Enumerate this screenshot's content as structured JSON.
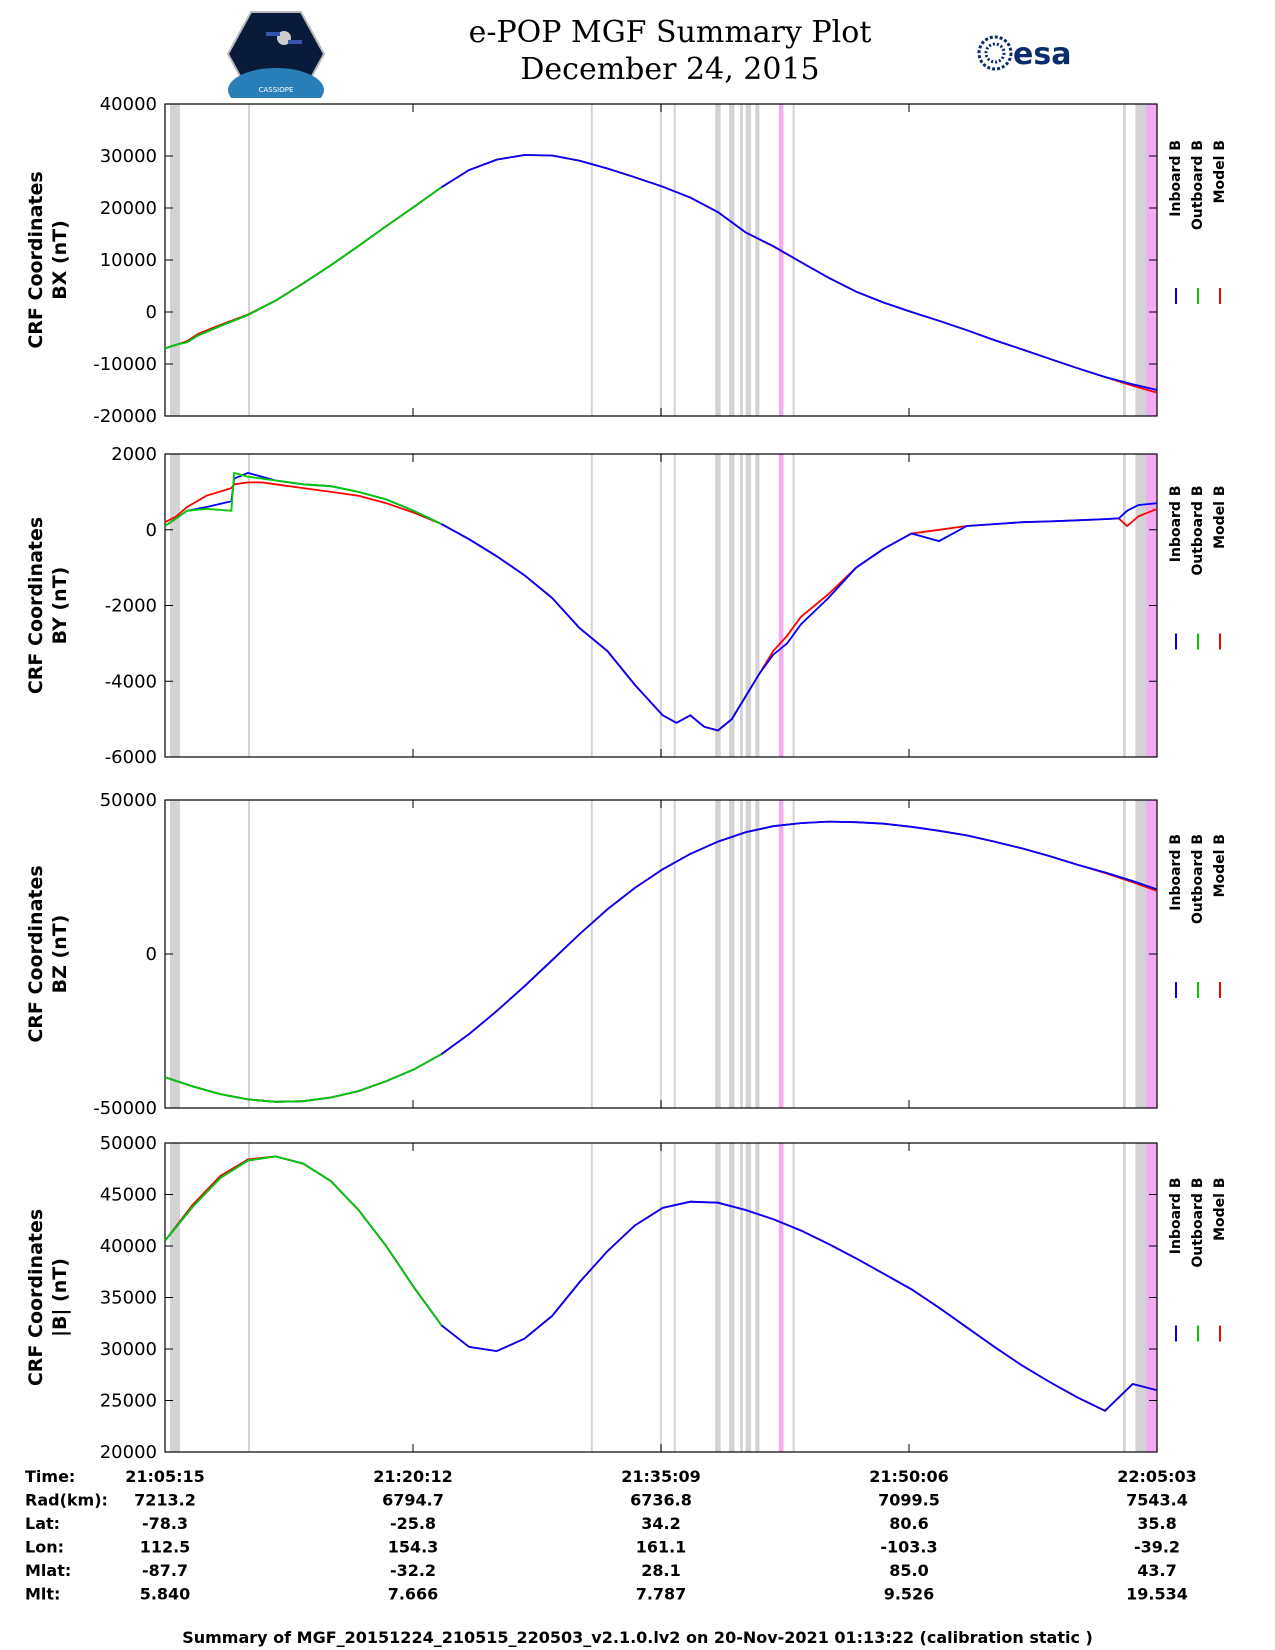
{
  "header": {
    "title_line1": "e-POP MGF Summary Plot",
    "title_line2": "December 24, 2015",
    "left_logo_text": "CASSIOPE",
    "right_logo_text": "esa"
  },
  "footer": "Summary of MGF_20151224_210515_220503_v2.1.0.lv2 on 20-Nov-2021 01:13:22 (calibration static )",
  "colors": {
    "inboard": "#0000ff",
    "outboard": "#00cc00",
    "model": "#ff0000",
    "gray_band": "#d3d3d3",
    "pink_band": "#f6aaf2"
  },
  "chart_data": {
    "type": "line",
    "x_ticks": [
      "21:05:15",
      "21:20:12",
      "21:35:09",
      "21:50:06",
      "22:05:03"
    ],
    "x_range": [
      0,
      3588
    ],
    "legend": [
      "Inboard B",
      "Outboard B",
      "Model B"
    ],
    "gray_bands": [
      [
        18,
        54
      ],
      [
        300,
        306
      ],
      [
        1540,
        1546
      ],
      [
        1790,
        1796
      ],
      [
        1840,
        1846
      ],
      [
        1990,
        2010
      ],
      [
        2040,
        2060
      ],
      [
        2080,
        2090
      ],
      [
        2100,
        2120
      ],
      [
        2135,
        2150
      ],
      [
        2230,
        2236
      ],
      [
        2270,
        2276
      ],
      [
        3465,
        3475
      ],
      [
        3510,
        3550
      ]
    ],
    "pink_bands": [
      [
        2220,
        2236
      ],
      [
        3550,
        3588
      ]
    ],
    "panels": [
      {
        "id": "bx",
        "ylabel_line1": "CRF Coordinates",
        "ylabel_line2": "BX (nT)",
        "ylim": [
          -20000,
          40000
        ],
        "y_ticks": [
          40000,
          30000,
          20000,
          10000,
          0,
          -10000,
          -20000
        ],
        "outboard_end": 1000,
        "series": {
          "t": [
            0,
            40,
            80,
            120,
            200,
            300,
            400,
            500,
            600,
            700,
            800,
            900,
            1000,
            1100,
            1200,
            1300,
            1400,
            1500,
            1600,
            1700,
            1800,
            1900,
            2000,
            2100,
            2200,
            2300,
            2400,
            2500,
            2600,
            2700,
            2800,
            2900,
            3000,
            3100,
            3200,
            3300,
            3400,
            3500,
            3588
          ],
          "inboard": [
            -7000,
            -6300,
            -5800,
            -4500,
            -2700,
            -600,
            2200,
            5500,
            9000,
            12700,
            16500,
            20200,
            24000,
            27300,
            29300,
            30200,
            30100,
            29100,
            27600,
            25900,
            24100,
            22000,
            19200,
            15300,
            12700,
            9600,
            6600,
            3900,
            1800,
            0,
            -1700,
            -3500,
            -5400,
            -7200,
            -9000,
            -10800,
            -12500,
            -13900,
            -15000
          ],
          "model": [
            -7000,
            -6300,
            -5600,
            -4200,
            -2500,
            -500,
            2200,
            5500,
            9000,
            12700,
            16500,
            20200,
            24000,
            27300,
            29300,
            30200,
            30100,
            29100,
            27600,
            25900,
            24100,
            22000,
            19200,
            15300,
            12600,
            9600,
            6600,
            3900,
            1800,
            0,
            -1700,
            -3500,
            -5400,
            -7200,
            -9000,
            -10800,
            -12500,
            -14200,
            -15500
          ]
        }
      },
      {
        "id": "by",
        "ylabel_line1": "CRF Coordinates",
        "ylabel_line2": "BY (nT)",
        "ylim": [
          -6000,
          2000
        ],
        "y_ticks": [
          2000,
          0,
          -2000,
          -4000,
          -6000
        ],
        "outboard_end": 1000,
        "series": {
          "t": [
            0,
            40,
            80,
            150,
            240,
            250,
            300,
            350,
            400,
            500,
            600,
            700,
            800,
            900,
            1000,
            1100,
            1200,
            1300,
            1400,
            1500,
            1600,
            1700,
            1800,
            1850,
            1900,
            1950,
            2000,
            2050,
            2100,
            2150,
            2200,
            2250,
            2300,
            2400,
            2500,
            2600,
            2700,
            2800,
            2900,
            3000,
            3100,
            3200,
            3300,
            3400,
            3450,
            3480,
            3520,
            3588
          ],
          "inboard": [
            100,
            300,
            500,
            600,
            750,
            1350,
            1500,
            1400,
            1300,
            1200,
            1150,
            1000,
            800,
            500,
            150,
            -250,
            -700,
            -1200,
            -1800,
            -2600,
            -3200,
            -4100,
            -4900,
            -5100,
            -4900,
            -5200,
            -5300,
            -5000,
            -4400,
            -3800,
            -3300,
            -3000,
            -2500,
            -1800,
            -1000,
            -500,
            -100,
            -300,
            100,
            150,
            200,
            220,
            250,
            280,
            300,
            500,
            650,
            700
          ],
          "model": [
            200,
            350,
            600,
            900,
            1100,
            1200,
            1250,
            1250,
            1200,
            1100,
            1000,
            900,
            700,
            450,
            150,
            -250,
            -700,
            -1200,
            -1800,
            -2600,
            -3200,
            -4100,
            -4900,
            -5100,
            -4900,
            -5200,
            -5300,
            -5000,
            -4400,
            -3800,
            -3200,
            -2800,
            -2300,
            -1700,
            -1000,
            -500,
            -100,
            0,
            100,
            150,
            200,
            220,
            250,
            280,
            300,
            100,
            350,
            550
          ],
          "outboard": [
            100,
            300,
            500,
            550,
            500,
            1500,
            1400,
            1350,
            1300,
            1200,
            1150,
            1000,
            800,
            500,
            150
          ]
        }
      },
      {
        "id": "bz",
        "ylabel_line1": "CRF Coordinates",
        "ylabel_line2": "BZ (nT)",
        "ylim": [
          -50000,
          50000
        ],
        "y_ticks": [
          50000,
          0,
          -50000
        ],
        "outboard_end": 1000,
        "series": {
          "t": [
            0,
            100,
            200,
            300,
            400,
            500,
            600,
            700,
            800,
            900,
            1000,
            1100,
            1200,
            1300,
            1400,
            1500,
            1600,
            1700,
            1800,
            1900,
            2000,
            2100,
            2200,
            2300,
            2400,
            2500,
            2600,
            2700,
            2800,
            2900,
            3000,
            3100,
            3200,
            3300,
            3400,
            3500,
            3588
          ],
          "inboard": [
            -40000,
            -43000,
            -45500,
            -47200,
            -48000,
            -47800,
            -46600,
            -44500,
            -41300,
            -37500,
            -32500,
            -26000,
            -18500,
            -10500,
            -2000,
            6500,
            14500,
            21500,
            27500,
            32500,
            36500,
            39500,
            41500,
            42500,
            43000,
            42800,
            42300,
            41300,
            40000,
            38500,
            36500,
            34300,
            31800,
            29000,
            26500,
            23700,
            21000
          ],
          "model": [
            -40000,
            -43000,
            -45500,
            -47200,
            -48000,
            -47800,
            -46600,
            -44500,
            -41300,
            -37500,
            -32500,
            -26000,
            -18500,
            -10500,
            -2000,
            6500,
            14500,
            21500,
            27500,
            32500,
            36500,
            39500,
            41500,
            42500,
            43000,
            42800,
            42300,
            41300,
            40000,
            38500,
            36500,
            34300,
            31800,
            29000,
            26300,
            23300,
            20500
          ]
        }
      },
      {
        "id": "bmag",
        "ylabel_line1": "CRF Coordinates",
        "ylabel_line2": "|B| (nT)",
        "ylim": [
          20000,
          50000
        ],
        "y_ticks": [
          50000,
          45000,
          40000,
          35000,
          30000,
          25000,
          20000
        ],
        "outboard_end": 1000,
        "series": {
          "t": [
            0,
            100,
            200,
            300,
            400,
            500,
            600,
            700,
            800,
            900,
            1000,
            1100,
            1200,
            1300,
            1400,
            1500,
            1600,
            1700,
            1800,
            1900,
            2000,
            2100,
            2200,
            2300,
            2400,
            2500,
            2600,
            2700,
            2800,
            2900,
            3000,
            3100,
            3200,
            3300,
            3400,
            3500,
            3588
          ],
          "inboard": [
            40500,
            43800,
            46600,
            48300,
            48700,
            48000,
            46300,
            43500,
            40000,
            36000,
            32300,
            30200,
            29800,
            31000,
            33200,
            36500,
            39500,
            42000,
            43700,
            44300,
            44200,
            43500,
            42600,
            41500,
            40200,
            38800,
            37300,
            35800,
            34000,
            32100,
            30200,
            28400,
            26800,
            25300,
            24000,
            26600,
            26000
          ],
          "model": [
            40500,
            44000,
            46800,
            48400,
            48700,
            48000,
            46300,
            43500,
            40000,
            36000,
            32300,
            30200,
            29800,
            31000,
            33200,
            36500,
            39500,
            42000,
            43700,
            44300,
            44200,
            43500,
            42600,
            41500,
            40200,
            38800,
            37300,
            35800,
            34000,
            32100,
            30200,
            28400,
            26800,
            25300,
            24000,
            26600,
            26000
          ]
        }
      }
    ]
  },
  "ephemeris": {
    "labels": [
      "Time:",
      "Rad(km):",
      "Lat:",
      "Lon:",
      "Mlat:",
      "Mlt:"
    ],
    "columns": [
      [
        "21:05:15",
        "7213.2",
        "-78.3",
        "112.5",
        "-87.7",
        "5.840"
      ],
      [
        "21:20:12",
        "6794.7",
        "-25.8",
        "154.3",
        "-32.2",
        "7.666"
      ],
      [
        "21:35:09",
        "6736.8",
        "34.2",
        "161.1",
        "28.1",
        "7.787"
      ],
      [
        "21:50:06",
        "7099.5",
        "80.6",
        "-103.3",
        "85.0",
        "9.526"
      ],
      [
        "22:05:03",
        "7543.4",
        "35.8",
        "-39.2",
        "43.7",
        "19.534"
      ]
    ]
  }
}
